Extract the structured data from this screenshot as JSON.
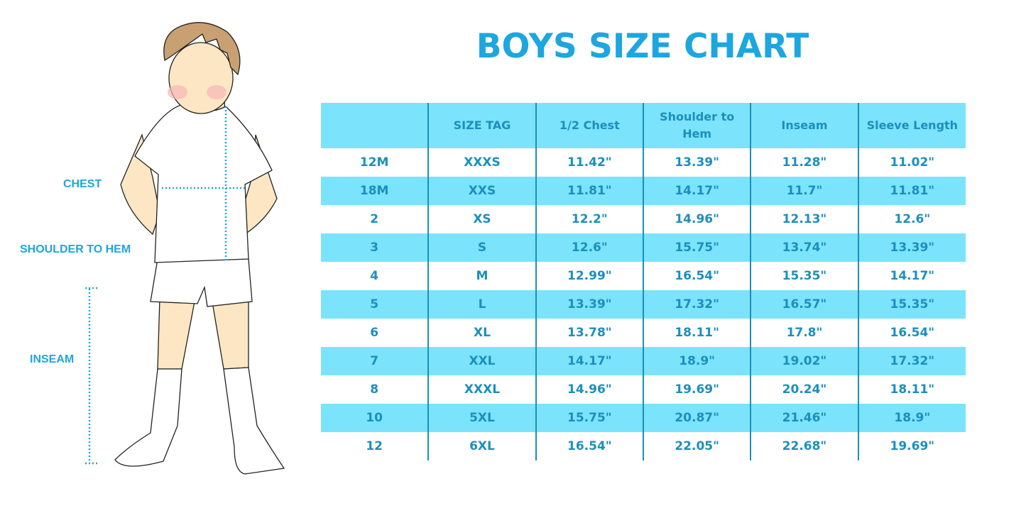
{
  "title": "BOYS SIZE CHART",
  "illustration_labels": {
    "chest": "CHEST",
    "shoulder_to_hem": "SHOULDER TO HEM",
    "inseam": "INSEAM"
  },
  "colors": {
    "accent": "#1da6df",
    "stripe": "#7be3fb",
    "text": "#1b8fbd"
  },
  "table": {
    "headers": [
      "",
      "SIZE TAG",
      "1/2 Chest",
      "Shoulder to Hem",
      "Inseam",
      "Sleeve Length"
    ],
    "rows": [
      [
        "12M",
        "XXXS",
        "11.42\"",
        "13.39\"",
        "11.28\"",
        "11.02\""
      ],
      [
        "18M",
        "XXS",
        "11.81\"",
        "14.17\"",
        "11.7\"",
        "11.81\""
      ],
      [
        "2",
        "XS",
        "12.2\"",
        "14.96\"",
        "12.13\"",
        "12.6\""
      ],
      [
        "3",
        "S",
        "12.6\"",
        "15.75\"",
        "13.74\"",
        "13.39\""
      ],
      [
        "4",
        "M",
        "12.99\"",
        "16.54\"",
        "15.35\"",
        "14.17\""
      ],
      [
        "5",
        "L",
        "13.39\"",
        "17.32\"",
        "16.57\"",
        "15.35\""
      ],
      [
        "6",
        "XL",
        "13.78\"",
        "18.11\"",
        "17.8\"",
        "16.54\""
      ],
      [
        "7",
        "XXL",
        "14.17\"",
        "18.9\"",
        "19.02\"",
        "17.32\""
      ],
      [
        "8",
        "XXXL",
        "14.96\"",
        "19.69\"",
        "20.24\"",
        "18.11\""
      ],
      [
        "10",
        "5XL",
        "15.75\"",
        "20.87\"",
        "21.46\"",
        "18.9\""
      ],
      [
        "12",
        "6XL",
        "16.54\"",
        "22.05\"",
        "22.68\"",
        "19.69\""
      ]
    ]
  }
}
